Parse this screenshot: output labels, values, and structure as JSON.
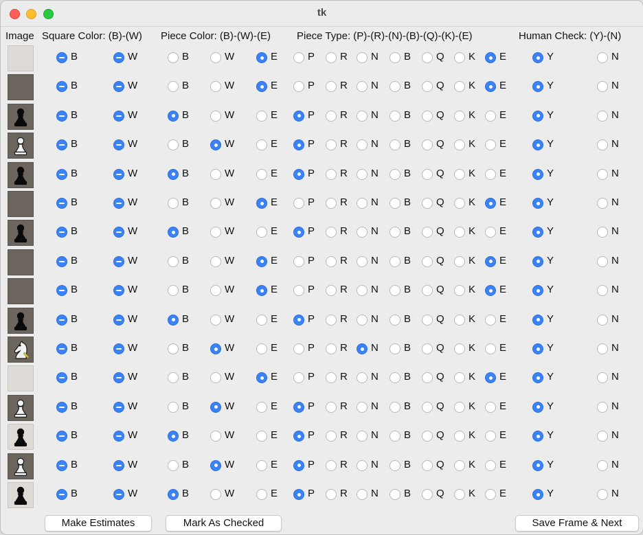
{
  "window": {
    "title": "tk"
  },
  "headers": {
    "image": "Image",
    "square_color": "Square Color: (B)-(W)",
    "piece_color": "Piece Color: (B)-(W)-(E)",
    "piece_type": "Piece Type: (P)-(R)-(N)-(B)-(Q)-(K)-(E)",
    "human_check": "Human Check: (Y)-(N)"
  },
  "option_labels": {
    "square_color": [
      "B",
      "W"
    ],
    "piece_color": [
      "B",
      "W",
      "E"
    ],
    "piece_type": [
      "P",
      "R",
      "N",
      "B",
      "Q",
      "K",
      "E"
    ],
    "human_check": [
      "Y",
      "N"
    ]
  },
  "rows": [
    {
      "image": "empty-light-square-icon",
      "square_color": "mixed",
      "piece_color": "E",
      "piece_type": "E",
      "human_check": "Y"
    },
    {
      "image": "empty-dark-square-icon",
      "square_color": "mixed",
      "piece_color": "E",
      "piece_type": "E",
      "human_check": "Y"
    },
    {
      "image": "black-pawn-dark-square-icon",
      "square_color": "mixed",
      "piece_color": "B",
      "piece_type": "P",
      "human_check": "Y"
    },
    {
      "image": "white-pawn-dark-square-icon",
      "square_color": "mixed",
      "piece_color": "W",
      "piece_type": "P",
      "human_check": "Y"
    },
    {
      "image": "black-pawn-dark-square-icon",
      "square_color": "mixed",
      "piece_color": "B",
      "piece_type": "P",
      "human_check": "Y"
    },
    {
      "image": "empty-dark-square-icon",
      "square_color": "mixed",
      "piece_color": "E",
      "piece_type": "E",
      "human_check": "Y"
    },
    {
      "image": "black-pawn-dark-square-icon",
      "square_color": "mixed",
      "piece_color": "B",
      "piece_type": "P",
      "human_check": "Y"
    },
    {
      "image": "empty-dark-square-icon",
      "square_color": "mixed",
      "piece_color": "E",
      "piece_type": "E",
      "human_check": "Y"
    },
    {
      "image": "empty-dark-square-icon",
      "square_color": "mixed",
      "piece_color": "E",
      "piece_type": "E",
      "human_check": "Y"
    },
    {
      "image": "black-pawn-dark-square-icon",
      "square_color": "mixed",
      "piece_color": "B",
      "piece_type": "P",
      "human_check": "Y"
    },
    {
      "image": "white-knight-dark-square-icon",
      "square_color": "mixed",
      "piece_color": "W",
      "piece_type": "N",
      "human_check": "Y"
    },
    {
      "image": "empty-light-square-icon",
      "square_color": "mixed",
      "piece_color": "E",
      "piece_type": "E",
      "human_check": "Y"
    },
    {
      "image": "white-pawn-dark-square-icon",
      "square_color": "mixed",
      "piece_color": "W",
      "piece_type": "P",
      "human_check": "Y"
    },
    {
      "image": "black-pawn-light-square-icon",
      "square_color": "mixed",
      "piece_color": "B",
      "piece_type": "P",
      "human_check": "Y"
    },
    {
      "image": "white-pawn-dark-square-icon",
      "square_color": "mixed",
      "piece_color": "W",
      "piece_type": "P",
      "human_check": "Y"
    },
    {
      "image": "black-pawn-light-square-icon",
      "square_color": "mixed",
      "piece_color": "B",
      "piece_type": "P",
      "human_check": "Y"
    }
  ],
  "buttons": {
    "make_estimates": "Make Estimates",
    "mark_checked": "Mark As Checked",
    "save_next": "Save Frame & Next"
  },
  "colors": {
    "accent": "#3a82f7",
    "window_bg": "#ececec"
  }
}
